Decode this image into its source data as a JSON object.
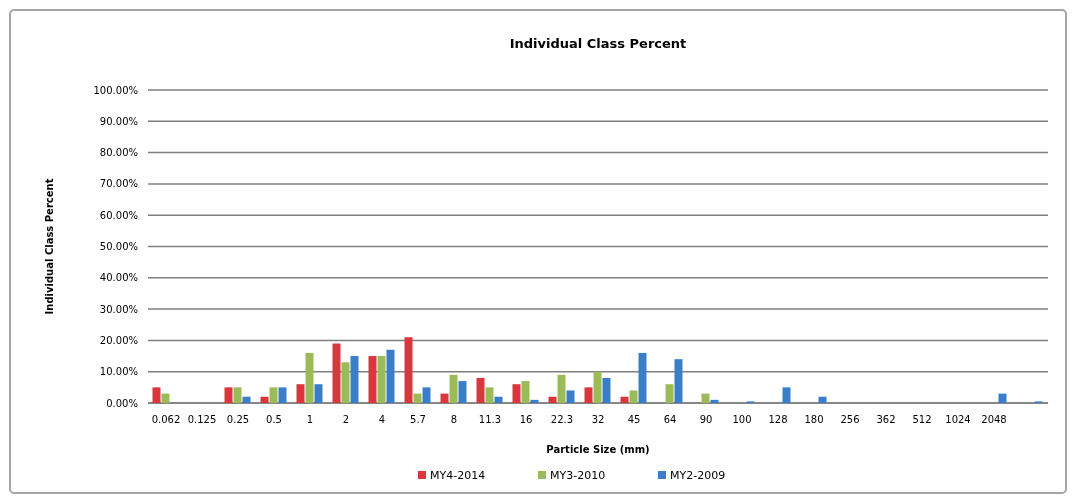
{
  "chart_data": {
    "type": "bar",
    "title": "Individual Class Percent",
    "xlabel": "Particle Size (mm)",
    "ylabel": "Individual Class Percent",
    "categories": [
      "0.062",
      "0.125",
      "0.25",
      "0.5",
      "1",
      "2",
      "4",
      "5.7",
      "8",
      "11.3",
      "16",
      "22.3",
      "32",
      "45",
      "64",
      "90",
      "100",
      "128",
      "180",
      "256",
      "362",
      "512",
      "1024",
      "2048",
      null
    ],
    "series": [
      {
        "name": "MY4-2014",
        "color": "#d9363e",
        "values": [
          5,
          0,
          5,
          2,
          6,
          19,
          15,
          21,
          3,
          8,
          6,
          2,
          5,
          2,
          0,
          0,
          0,
          0,
          0,
          0,
          0,
          0,
          0,
          0,
          0
        ]
      },
      {
        "name": "MY3-2010",
        "color": "#9bbb59",
        "values": [
          3,
          0,
          5,
          5,
          16,
          13,
          15,
          3,
          9,
          5,
          7,
          9,
          10,
          4,
          6,
          3,
          null,
          0,
          0,
          0,
          0,
          0,
          0,
          0,
          0
        ]
      },
      {
        "name": "MY2-2009",
        "color": "#3a7dc9",
        "values": [
          0,
          0,
          2,
          5,
          6,
          15,
          17,
          5,
          7,
          2,
          1,
          4,
          8,
          16,
          14,
          1,
          0.5,
          5,
          2,
          0,
          0,
          0,
          0,
          3,
          0.5
        ]
      }
    ],
    "ylim": [
      0,
      100
    ],
    "yticks": [
      {
        "value": 0,
        "label": "0.00%"
      },
      {
        "value": 10,
        "label": "10.00%"
      },
      {
        "value": 20,
        "label": "20.00%"
      },
      {
        "value": 30,
        "label": "30.00%"
      },
      {
        "value": 40,
        "label": "40.00%"
      },
      {
        "value": 50,
        "label": "50.00%"
      },
      {
        "value": 60,
        "label": "60.00%"
      },
      {
        "value": 70,
        "label": "70.00%"
      },
      {
        "value": 80,
        "label": "80.00%"
      },
      {
        "value": 90,
        "label": "90.00%"
      },
      {
        "value": 100,
        "label": "100.00%"
      }
    ],
    "grid": "y",
    "legend": "bottom"
  }
}
